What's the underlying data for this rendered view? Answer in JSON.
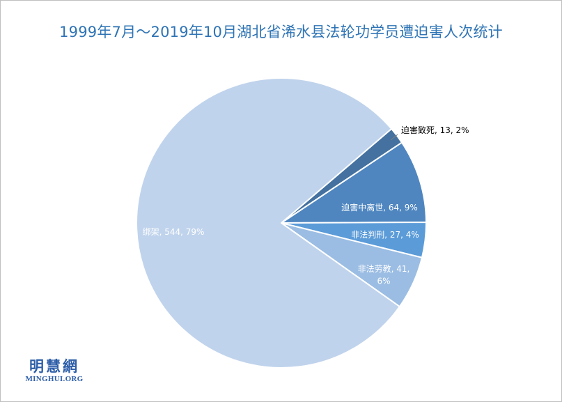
{
  "chart_data": {
    "type": "pie",
    "title": "1999年7月～2019年10月湖北省浠水县法轮功学员遭迫害人次统计",
    "slices": [
      {
        "label": "迫害致死",
        "value": 13,
        "percent": "2%",
        "color": "#44719f",
        "label_color": "#000000"
      },
      {
        "label": "迫害中离世",
        "value": 64,
        "percent": "9%",
        "color": "#4f86c0",
        "label_color": "#ffffff"
      },
      {
        "label": "非法判刑",
        "value": 27,
        "percent": "4%",
        "color": "#5b9bd8",
        "label_color": "#ffffff"
      },
      {
        "label": "非法劳教",
        "value": 41,
        "percent": "6%",
        "color": "#9bbde3",
        "label_color": "#ffffff"
      },
      {
        "label": "绑架",
        "value": 544,
        "percent": "79%",
        "color": "#c0d3ec",
        "label_color": "#ffffff"
      }
    ],
    "legend": "none"
  },
  "logo": {
    "chinese": "明慧網",
    "english": "MINGHUI.ORG"
  }
}
